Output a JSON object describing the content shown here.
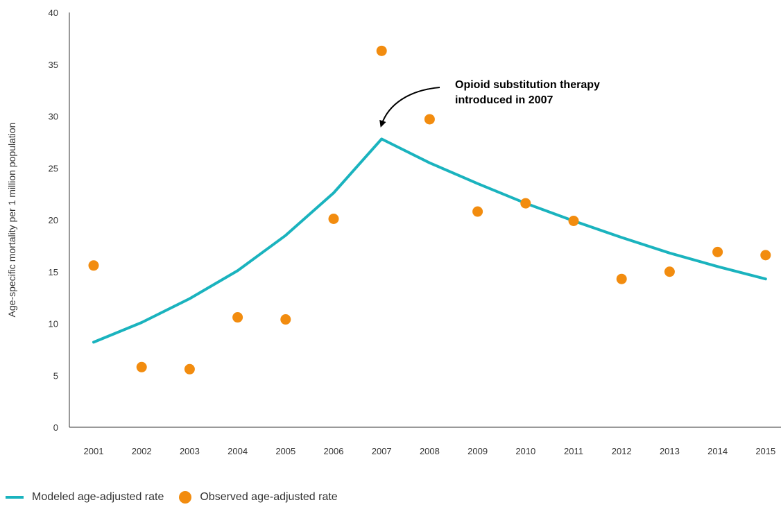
{
  "colors": {
    "modeled": "#1ab3be",
    "observed": "#f28c0f",
    "axis": "#333333"
  },
  "chart_data": {
    "type": "line",
    "title": "",
    "xlabel": "",
    "ylabel": "Age-specific mortality per 1 million population",
    "x": [
      "2001",
      "2002",
      "2003",
      "2004",
      "2005",
      "2006",
      "2007",
      "2008",
      "2009",
      "2010",
      "2011",
      "2012",
      "2013",
      "2014",
      "2015"
    ],
    "ylim": [
      0,
      40
    ],
    "yticks": [
      0,
      5,
      10,
      15,
      20,
      25,
      30,
      35,
      40
    ],
    "grid": false,
    "legend_position": "bottom-left",
    "series": [
      {
        "name": "Modeled age-adjusted rate",
        "kind": "line",
        "values": [
          8.2,
          10.1,
          12.4,
          15.1,
          18.5,
          22.6,
          27.8,
          25.5,
          23.5,
          21.6,
          19.9,
          18.3,
          16.8,
          15.5,
          14.3
        ]
      },
      {
        "name": "Observed age-adjusted rate",
        "kind": "scatter",
        "values": [
          15.6,
          5.8,
          5.6,
          10.6,
          10.4,
          20.1,
          36.3,
          29.7,
          20.8,
          21.6,
          19.9,
          14.3,
          15.0,
          16.9,
          16.6
        ]
      }
    ],
    "annotations": [
      {
        "lines": [
          "Opioid substitution therapy",
          "introduced in 2007"
        ],
        "points_to_x": "2007"
      }
    ]
  }
}
